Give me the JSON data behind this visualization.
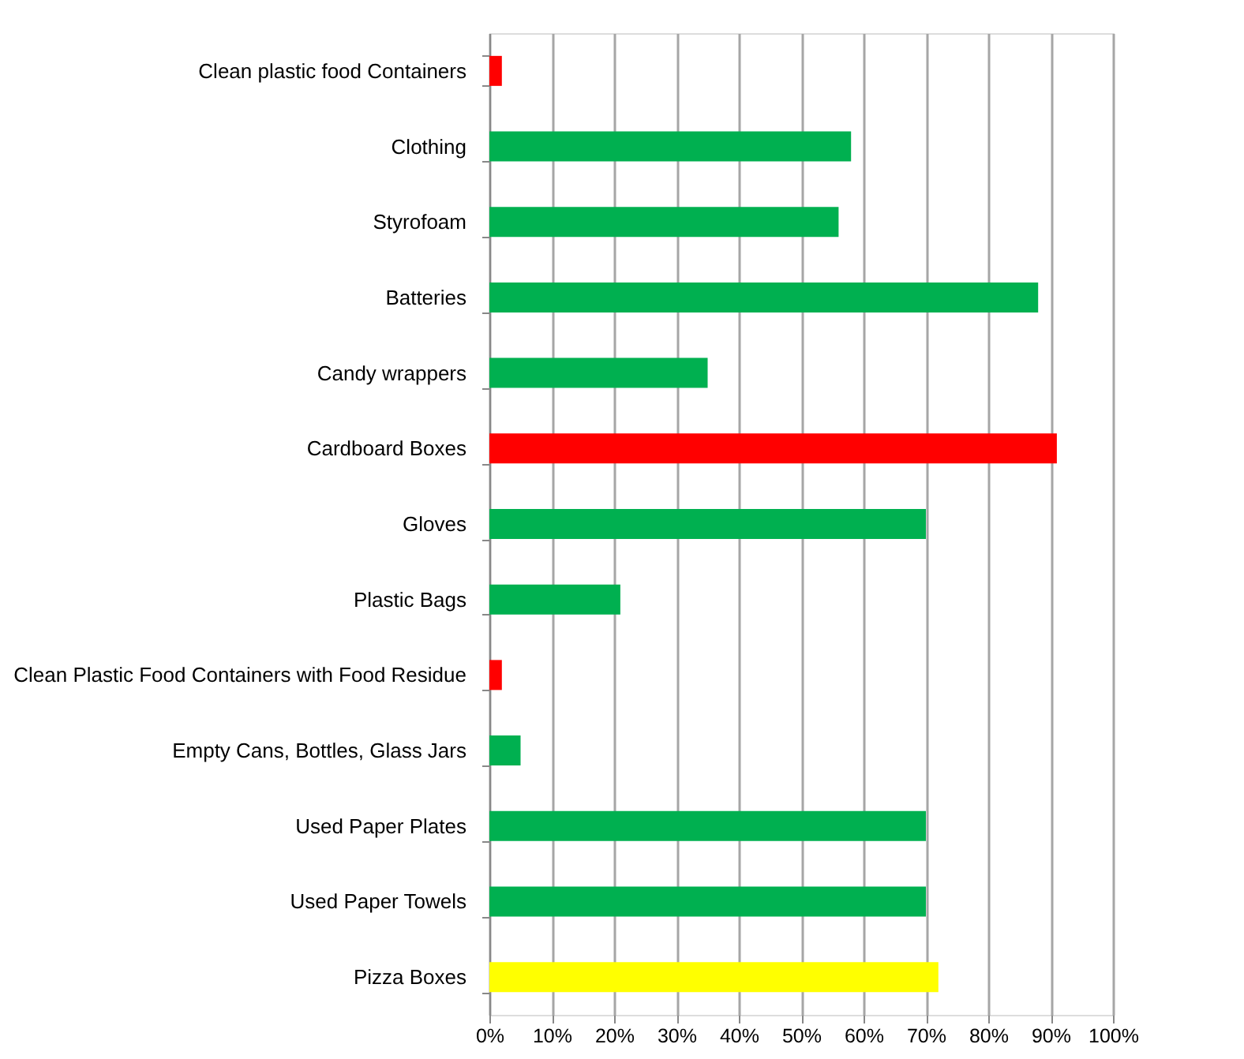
{
  "chart_data": {
    "type": "bar",
    "orientation": "horizontal",
    "categories": [
      "Clean plastic food Containers",
      "Clothing",
      "Styrofoam",
      "Batteries",
      "Candy wrappers",
      "Cardboard Boxes",
      "Gloves",
      "Plastic Bags",
      "Clean Plastic Food Containers with Food Residue",
      "Empty Cans, Bottles, Glass Jars",
      "Used Paper Plates",
      "Used Paper Towels",
      "Pizza Boxes"
    ],
    "values": [
      2,
      58,
      56,
      88,
      35,
      91,
      70,
      21,
      2,
      5,
      70,
      70,
      72
    ],
    "colors": [
      "#ff0000",
      "#00b050",
      "#00b050",
      "#00b050",
      "#00b050",
      "#ff0000",
      "#00b050",
      "#00b050",
      "#ff0000",
      "#00b050",
      "#00b050",
      "#00b050",
      "#ffff00"
    ],
    "xlim": [
      0,
      100
    ],
    "xticks": [
      {
        "value": 0,
        "label": "0%"
      },
      {
        "value": 10,
        "label": "10%"
      },
      {
        "value": 20,
        "label": "20%"
      },
      {
        "value": 30,
        "label": "30%"
      },
      {
        "value": 40,
        "label": "40%"
      },
      {
        "value": 50,
        "label": "50%"
      },
      {
        "value": 60,
        "label": "60%"
      },
      {
        "value": 70,
        "label": "70%"
      },
      {
        "value": 80,
        "label": "80%"
      },
      {
        "value": 90,
        "label": "90%"
      },
      {
        "value": 100,
        "label": "100%"
      }
    ],
    "grid": "x"
  }
}
